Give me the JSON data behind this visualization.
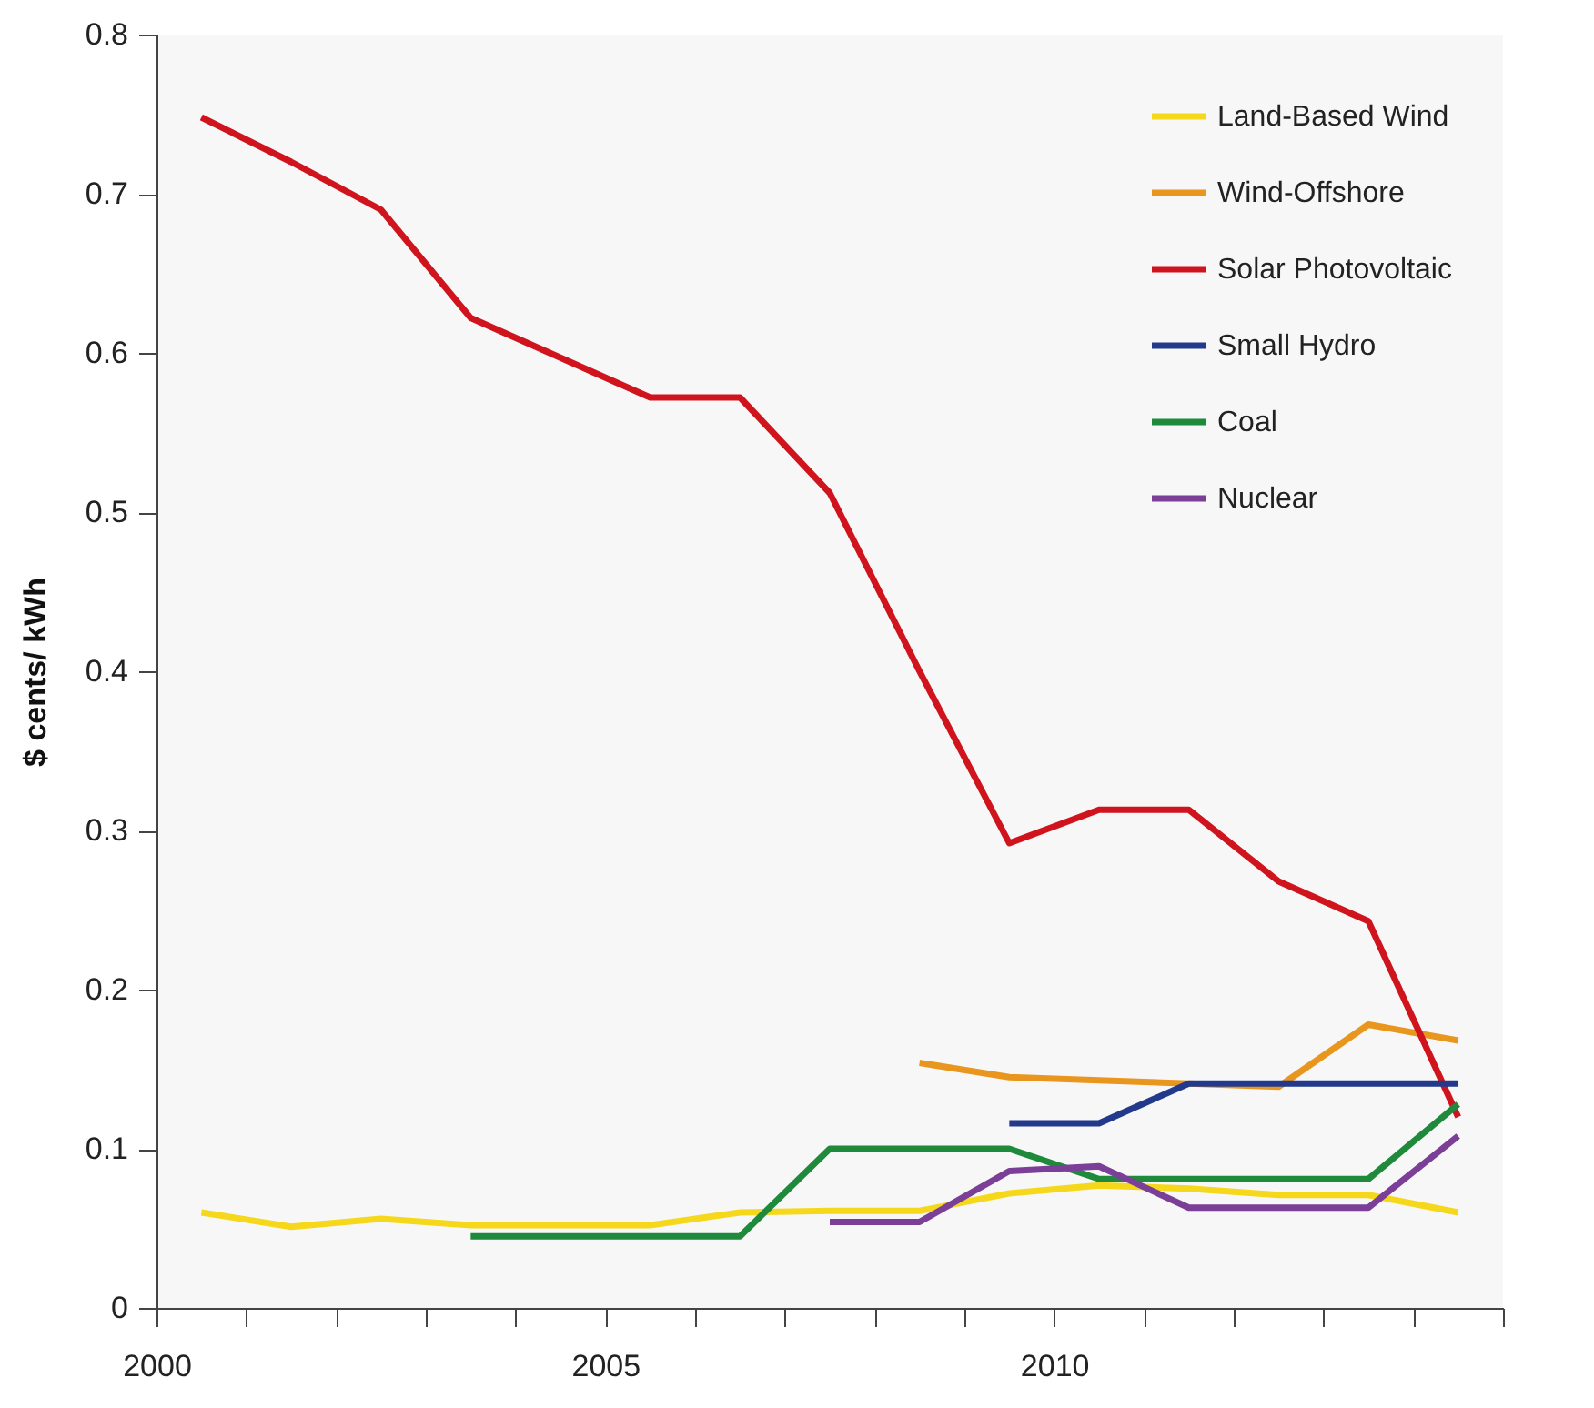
{
  "chart_data": {
    "type": "line",
    "ylabel": "$ cents/ kWh",
    "xlim": [
      2000,
      2015
    ],
    "xticks": [
      {
        "value": 2000,
        "label": "2000"
      },
      {
        "value": 2001,
        "label": null
      },
      {
        "value": 2002,
        "label": null
      },
      {
        "value": 2003,
        "label": null
      },
      {
        "value": 2004,
        "label": null
      },
      {
        "value": 2005,
        "label": "2005"
      },
      {
        "value": 2006,
        "label": null
      },
      {
        "value": 2007,
        "label": null
      },
      {
        "value": 2008,
        "label": null
      },
      {
        "value": 2009,
        "label": null
      },
      {
        "value": 2010,
        "label": "2010"
      },
      {
        "value": 2011,
        "label": null
      },
      {
        "value": 2012,
        "label": null
      },
      {
        "value": 2013,
        "label": null
      },
      {
        "value": 2014,
        "label": null
      },
      {
        "value": 2015,
        "label": null
      }
    ],
    "ylim": [
      0,
      0.8
    ],
    "yticks": [
      0,
      0.1,
      0.2,
      0.3,
      0.4,
      0.5,
      0.6,
      0.7,
      0.8
    ],
    "legend": "top right",
    "series": [
      {
        "name": "Land-Based Wind",
        "color": "#f5d81c",
        "x": [
          2000.5,
          2001.5,
          2002.5,
          2003.5,
          2004.5,
          2005.5,
          2006.5,
          2007.5,
          2008.5,
          2009.5,
          2010.5,
          2011.5,
          2012.5,
          2013.5,
          2014.5
        ],
        "values": [
          0.06,
          0.051,
          0.056,
          0.052,
          0.052,
          0.052,
          0.06,
          0.061,
          0.061,
          0.072,
          0.077,
          0.075,
          0.071,
          0.071,
          0.06
        ]
      },
      {
        "name": "Wind-Offshore",
        "color": "#e8961e",
        "x": [
          2008.5,
          2009.5,
          2010.5,
          2011.5,
          2012.5,
          2013.5,
          2014.5
        ],
        "values": [
          0.154,
          0.145,
          0.143,
          0.141,
          0.139,
          0.178,
          0.168
        ]
      },
      {
        "name": "Solar Photovoltaic",
        "color": "#d0141e",
        "x": [
          2000.5,
          2001.5,
          2002.5,
          2003.5,
          2004.5,
          2005.5,
          2006.5,
          2007.5,
          2008.5,
          2009.5,
          2010.5,
          2011.5,
          2012.5,
          2013.5,
          2014.5
        ],
        "values": [
          0.748,
          0.72,
          0.69,
          0.622,
          0.597,
          0.572,
          0.572,
          0.512,
          0.4,
          0.292,
          0.313,
          0.313,
          0.268,
          0.243,
          0.12
        ]
      },
      {
        "name": "Small Hydro",
        "color": "#233a8c",
        "x": [
          2009.5,
          2010.5,
          2011.5,
          2012.5,
          2013.5,
          2014.5
        ],
        "values": [
          0.116,
          0.116,
          0.141,
          0.141,
          0.141,
          0.141
        ]
      },
      {
        "name": "Coal",
        "color": "#1f8a3c",
        "x": [
          2003.5,
          2004.5,
          2005.5,
          2006.5,
          2007.5,
          2008.5,
          2009.5,
          2010.5,
          2011.5,
          2012.5,
          2013.5,
          2014.5
        ],
        "values": [
          0.045,
          0.045,
          0.045,
          0.045,
          0.1,
          0.1,
          0.1,
          0.081,
          0.081,
          0.081,
          0.081,
          0.128
        ]
      },
      {
        "name": "Nuclear",
        "color": "#7b3f98",
        "x": [
          2007.5,
          2008.5,
          2009.5,
          2010.5,
          2011.5,
          2012.5,
          2013.5,
          2014.5
        ],
        "values": [
          0.054,
          0.054,
          0.086,
          0.089,
          0.063,
          0.063,
          0.063,
          0.108
        ]
      }
    ]
  }
}
